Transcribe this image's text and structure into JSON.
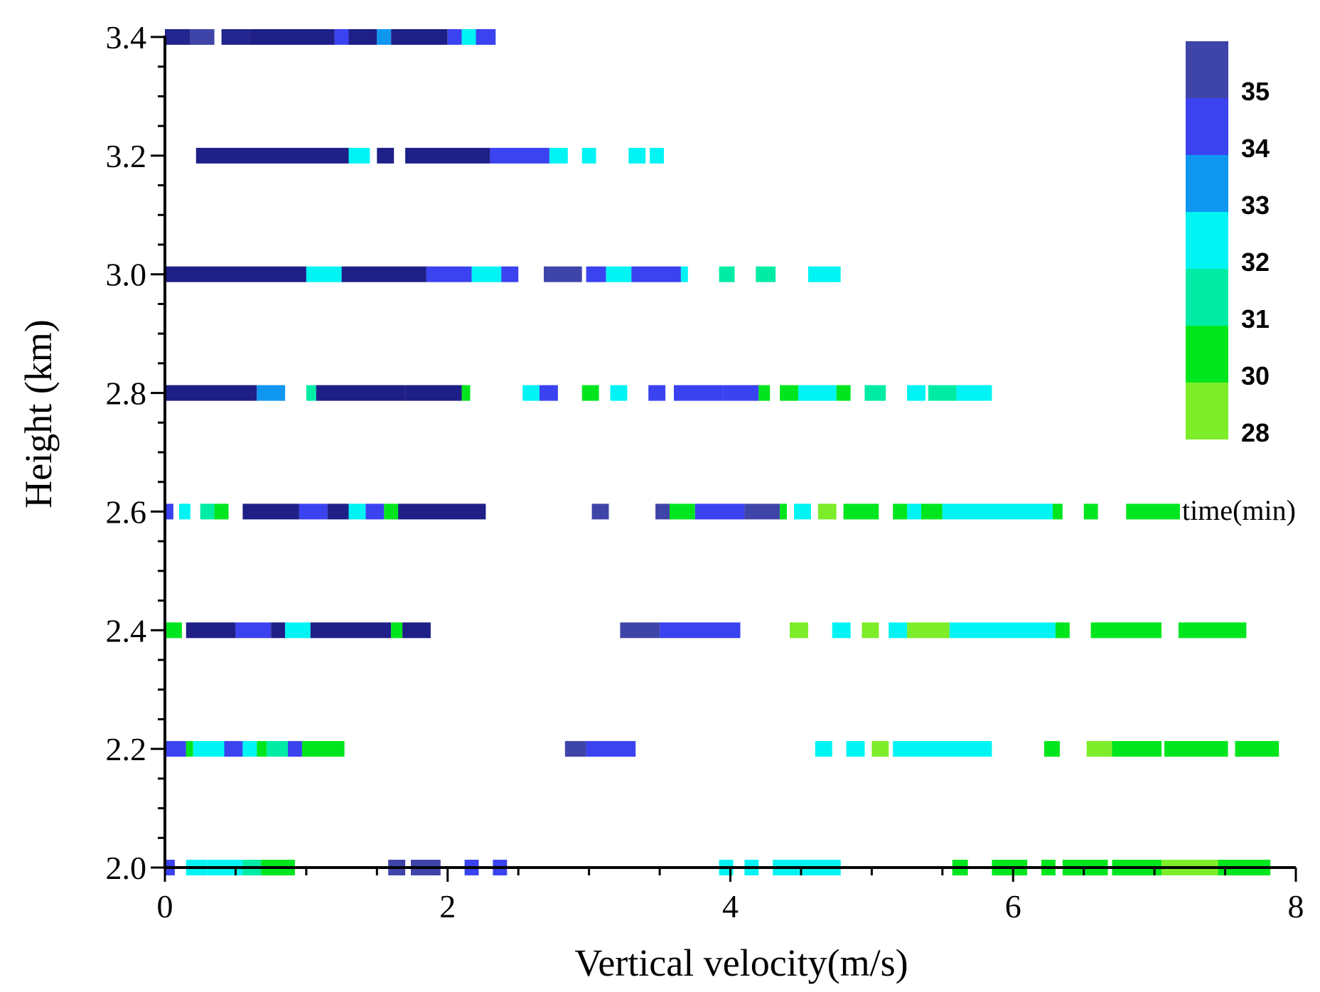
{
  "chart_data": {
    "type": "heatmap",
    "xlabel": "Vertical velocity(m/s)",
    "ylabel": "Height (km)",
    "xlim": [
      0,
      8
    ],
    "ylim": [
      2.0,
      3.4
    ],
    "x_ticks": [
      "0",
      "2",
      "4",
      "6",
      "8"
    ],
    "y_ticks": [
      "2.0",
      "2.2",
      "2.4",
      "2.6",
      "2.8",
      "3.0",
      "3.2",
      "3.4"
    ],
    "colorbar": {
      "title": "time(min)",
      "labels": [
        "35",
        "34",
        "33",
        "32",
        "31",
        "30",
        "28"
      ],
      "colors": [
        "#3f45a8",
        "#3a43ef",
        "#0f97f0",
        "#00f4f4",
        "#00eca5",
        "#00e61e",
        "#7ded2a"
      ]
    },
    "rows": [
      {
        "height": 3.4,
        "segments": [
          [
            0.0,
            0.18,
            "#25258f"
          ],
          [
            0.18,
            0.35,
            "#3f45a8"
          ],
          [
            0.4,
            0.6,
            "#25258f"
          ],
          [
            0.6,
            1.2,
            "#1f1f88"
          ],
          [
            1.2,
            1.3,
            "#3a43ef"
          ],
          [
            1.3,
            1.5,
            "#1f1f88"
          ],
          [
            1.5,
            1.6,
            "#0f97f0"
          ],
          [
            1.6,
            2.0,
            "#1f1f88"
          ],
          [
            2.0,
            2.1,
            "#3a43ef"
          ],
          [
            2.1,
            2.2,
            "#00f4f4"
          ],
          [
            2.2,
            2.34,
            "#3a43ef"
          ]
        ]
      },
      {
        "height": 3.2,
        "segments": [
          [
            0.22,
            1.3,
            "#1f1f88"
          ],
          [
            1.3,
            1.45,
            "#00f4f4"
          ],
          [
            1.5,
            1.62,
            "#1f1f88"
          ],
          [
            1.7,
            2.3,
            "#1f1f88"
          ],
          [
            2.3,
            2.72,
            "#3a43ef"
          ],
          [
            2.72,
            2.85,
            "#00f4f4"
          ],
          [
            2.95,
            3.05,
            "#00f4f4"
          ],
          [
            3.28,
            3.4,
            "#00f4f4"
          ],
          [
            3.43,
            3.53,
            "#00f4f4"
          ]
        ]
      },
      {
        "height": 3.0,
        "segments": [
          [
            0.0,
            1.0,
            "#1f1f88"
          ],
          [
            1.0,
            1.25,
            "#00f4f4"
          ],
          [
            1.25,
            1.85,
            "#1f1f88"
          ],
          [
            1.85,
            2.17,
            "#3a43ef"
          ],
          [
            2.17,
            2.38,
            "#00f4f4"
          ],
          [
            2.38,
            2.5,
            "#3a43ef"
          ],
          [
            2.68,
            2.95,
            "#3f45a8"
          ],
          [
            2.98,
            3.12,
            "#3a43ef"
          ],
          [
            3.12,
            3.3,
            "#00f4f4"
          ],
          [
            3.3,
            3.65,
            "#3a43ef"
          ],
          [
            3.65,
            3.7,
            "#00f4f4"
          ],
          [
            3.92,
            4.03,
            "#00eca5"
          ],
          [
            4.18,
            4.32,
            "#00eca5"
          ],
          [
            4.55,
            4.78,
            "#00f4f4"
          ]
        ]
      },
      {
        "height": 2.8,
        "segments": [
          [
            0.0,
            0.65,
            "#1f1f88"
          ],
          [
            0.65,
            0.85,
            "#0f97f0"
          ],
          [
            1.0,
            1.07,
            "#00eca5"
          ],
          [
            1.07,
            1.7,
            "#1f1f88"
          ],
          [
            1.7,
            2.1,
            "#1f1f88"
          ],
          [
            2.1,
            2.16,
            "#00e61e"
          ],
          [
            2.53,
            2.65,
            "#00f4f4"
          ],
          [
            2.65,
            2.78,
            "#3a43ef"
          ],
          [
            2.95,
            3.07,
            "#00e61e"
          ],
          [
            3.15,
            3.27,
            "#00f4f4"
          ],
          [
            3.42,
            3.54,
            "#3a43ef"
          ],
          [
            3.6,
            3.95,
            "#3a43ef"
          ],
          [
            3.95,
            4.2,
            "#3a43ef"
          ],
          [
            4.2,
            4.28,
            "#00e61e"
          ],
          [
            4.35,
            4.48,
            "#00e61e"
          ],
          [
            4.48,
            4.75,
            "#00f4f4"
          ],
          [
            4.75,
            4.85,
            "#00e61e"
          ],
          [
            4.95,
            5.1,
            "#00eca5"
          ],
          [
            5.25,
            5.38,
            "#00f4f4"
          ],
          [
            5.4,
            5.6,
            "#00eca5"
          ],
          [
            5.6,
            5.85,
            "#00f4f4"
          ]
        ]
      },
      {
        "height": 2.6,
        "segments": [
          [
            0.0,
            0.06,
            "#3a43ef"
          ],
          [
            0.1,
            0.18,
            "#00f4f4"
          ],
          [
            0.25,
            0.35,
            "#00eca5"
          ],
          [
            0.35,
            0.45,
            "#00e61e"
          ],
          [
            0.55,
            0.95,
            "#1f1f88"
          ],
          [
            0.95,
            1.15,
            "#3a43ef"
          ],
          [
            1.15,
            1.3,
            "#1f1f88"
          ],
          [
            1.3,
            1.42,
            "#00f4f4"
          ],
          [
            1.42,
            1.55,
            "#3a43ef"
          ],
          [
            1.55,
            1.65,
            "#00e61e"
          ],
          [
            1.65,
            2.27,
            "#1f1f88"
          ],
          [
            3.02,
            3.14,
            "#3f45a8"
          ],
          [
            3.47,
            3.57,
            "#3f45a8"
          ],
          [
            3.57,
            3.75,
            "#00e61e"
          ],
          [
            3.75,
            4.1,
            "#3a43ef"
          ],
          [
            4.1,
            4.35,
            "#3f45a8"
          ],
          [
            4.35,
            4.4,
            "#00e61e"
          ],
          [
            4.45,
            4.57,
            "#00f4f4"
          ],
          [
            4.62,
            4.75,
            "#7ded2a"
          ],
          [
            4.8,
            4.9,
            "#00e61e"
          ],
          [
            4.9,
            5.05,
            "#00e61e"
          ],
          [
            5.15,
            5.25,
            "#00e61e"
          ],
          [
            5.25,
            5.35,
            "#00f4f4"
          ],
          [
            5.35,
            5.5,
            "#00e61e"
          ],
          [
            5.5,
            6.28,
            "#00f4f4"
          ],
          [
            6.28,
            6.35,
            "#00e61e"
          ],
          [
            6.5,
            6.6,
            "#00e61e"
          ],
          [
            6.8,
            7.18,
            "#00e61e"
          ]
        ]
      },
      {
        "height": 2.4,
        "segments": [
          [
            0.0,
            0.12,
            "#00e61e"
          ],
          [
            0.15,
            0.5,
            "#1f1f88"
          ],
          [
            0.5,
            0.75,
            "#3a43ef"
          ],
          [
            0.75,
            0.85,
            "#1f1f88"
          ],
          [
            0.85,
            1.03,
            "#00f4f4"
          ],
          [
            1.03,
            1.6,
            "#1f1f88"
          ],
          [
            1.6,
            1.68,
            "#00e61e"
          ],
          [
            1.68,
            1.88,
            "#1f1f88"
          ],
          [
            3.22,
            3.5,
            "#3f45a8"
          ],
          [
            3.5,
            4.07,
            "#3a43ef"
          ],
          [
            4.42,
            4.55,
            "#7ded2a"
          ],
          [
            4.72,
            4.85,
            "#00f4f4"
          ],
          [
            4.93,
            5.05,
            "#7ded2a"
          ],
          [
            5.12,
            5.25,
            "#00f4f4"
          ],
          [
            5.25,
            5.55,
            "#7ded2a"
          ],
          [
            5.55,
            6.3,
            "#00f4f4"
          ],
          [
            6.3,
            6.4,
            "#00e61e"
          ],
          [
            6.55,
            7.05,
            "#00e61e"
          ],
          [
            7.17,
            7.65,
            "#00e61e"
          ]
        ]
      },
      {
        "height": 2.2,
        "segments": [
          [
            0.0,
            0.15,
            "#3a43ef"
          ],
          [
            0.15,
            0.2,
            "#00e61e"
          ],
          [
            0.2,
            0.42,
            "#00f4f4"
          ],
          [
            0.42,
            0.55,
            "#3a43ef"
          ],
          [
            0.55,
            0.65,
            "#00f4f4"
          ],
          [
            0.65,
            0.72,
            "#00e61e"
          ],
          [
            0.72,
            0.87,
            "#00eca5"
          ],
          [
            0.87,
            0.97,
            "#3a43ef"
          ],
          [
            0.97,
            1.27,
            "#00e61e"
          ],
          [
            2.83,
            2.98,
            "#3f45a8"
          ],
          [
            2.98,
            3.33,
            "#3a43ef"
          ],
          [
            4.6,
            4.72,
            "#00f4f4"
          ],
          [
            4.82,
            4.95,
            "#00f4f4"
          ],
          [
            5.0,
            5.12,
            "#7ded2a"
          ],
          [
            5.15,
            5.85,
            "#00f4f4"
          ],
          [
            6.22,
            6.33,
            "#00e61e"
          ],
          [
            6.52,
            6.7,
            "#7ded2a"
          ],
          [
            6.7,
            7.05,
            "#00e61e"
          ],
          [
            7.07,
            7.52,
            "#00e61e"
          ],
          [
            7.57,
            7.88,
            "#00e61e"
          ]
        ]
      },
      {
        "height": 2.0,
        "segments": [
          [
            0.0,
            0.07,
            "#3a43ef"
          ],
          [
            0.15,
            0.3,
            "#00f4f4"
          ],
          [
            0.3,
            0.55,
            "#00f4f4"
          ],
          [
            0.55,
            0.68,
            "#00eca5"
          ],
          [
            0.68,
            0.92,
            "#00e61e"
          ],
          [
            1.58,
            1.7,
            "#3f45a8"
          ],
          [
            1.74,
            1.95,
            "#3f45a8"
          ],
          [
            2.12,
            2.22,
            "#3a43ef"
          ],
          [
            2.32,
            2.42,
            "#3a43ef"
          ],
          [
            3.92,
            4.02,
            "#00f4f4"
          ],
          [
            4.1,
            4.2,
            "#00f4f4"
          ],
          [
            4.3,
            4.78,
            "#00f4f4"
          ],
          [
            5.57,
            5.68,
            "#00e61e"
          ],
          [
            5.85,
            6.1,
            "#00e61e"
          ],
          [
            6.2,
            6.3,
            "#00e61e"
          ],
          [
            6.35,
            6.67,
            "#00e61e"
          ],
          [
            6.7,
            7.05,
            "#00e61e"
          ],
          [
            7.05,
            7.45,
            "#7ded2a"
          ],
          [
            7.45,
            7.82,
            "#00e61e"
          ]
        ]
      }
    ]
  }
}
